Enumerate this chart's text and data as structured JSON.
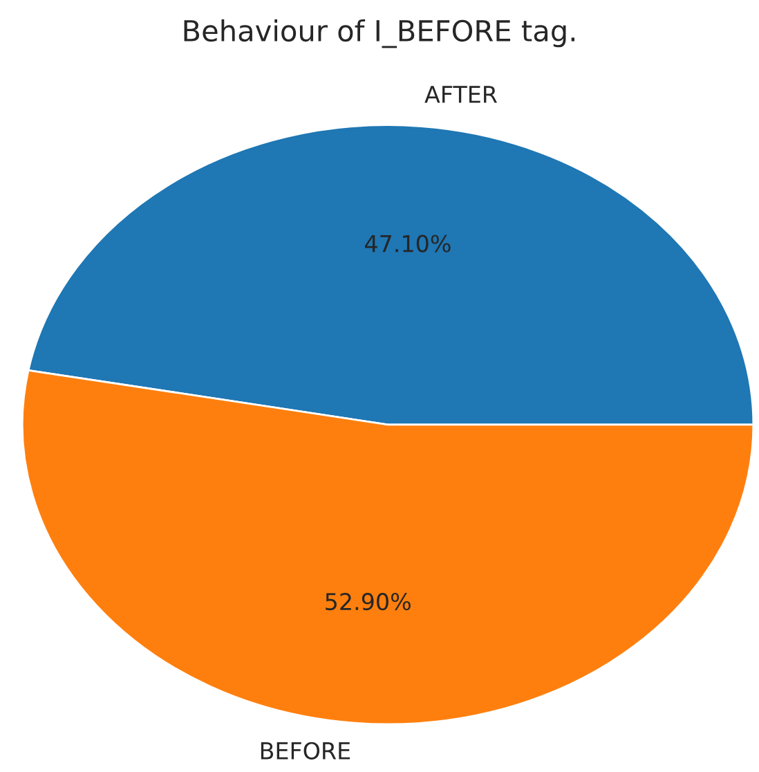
{
  "chart_data": {
    "type": "pie",
    "title": "Behaviour of I_BEFORE tag.",
    "categories": [
      "AFTER",
      "BEFORE"
    ],
    "values": [
      47.1,
      52.9
    ],
    "colors": [
      "#1f77b4",
      "#ff7f0e"
    ],
    "value_labels": [
      "47.10%",
      "52.90%"
    ]
  }
}
